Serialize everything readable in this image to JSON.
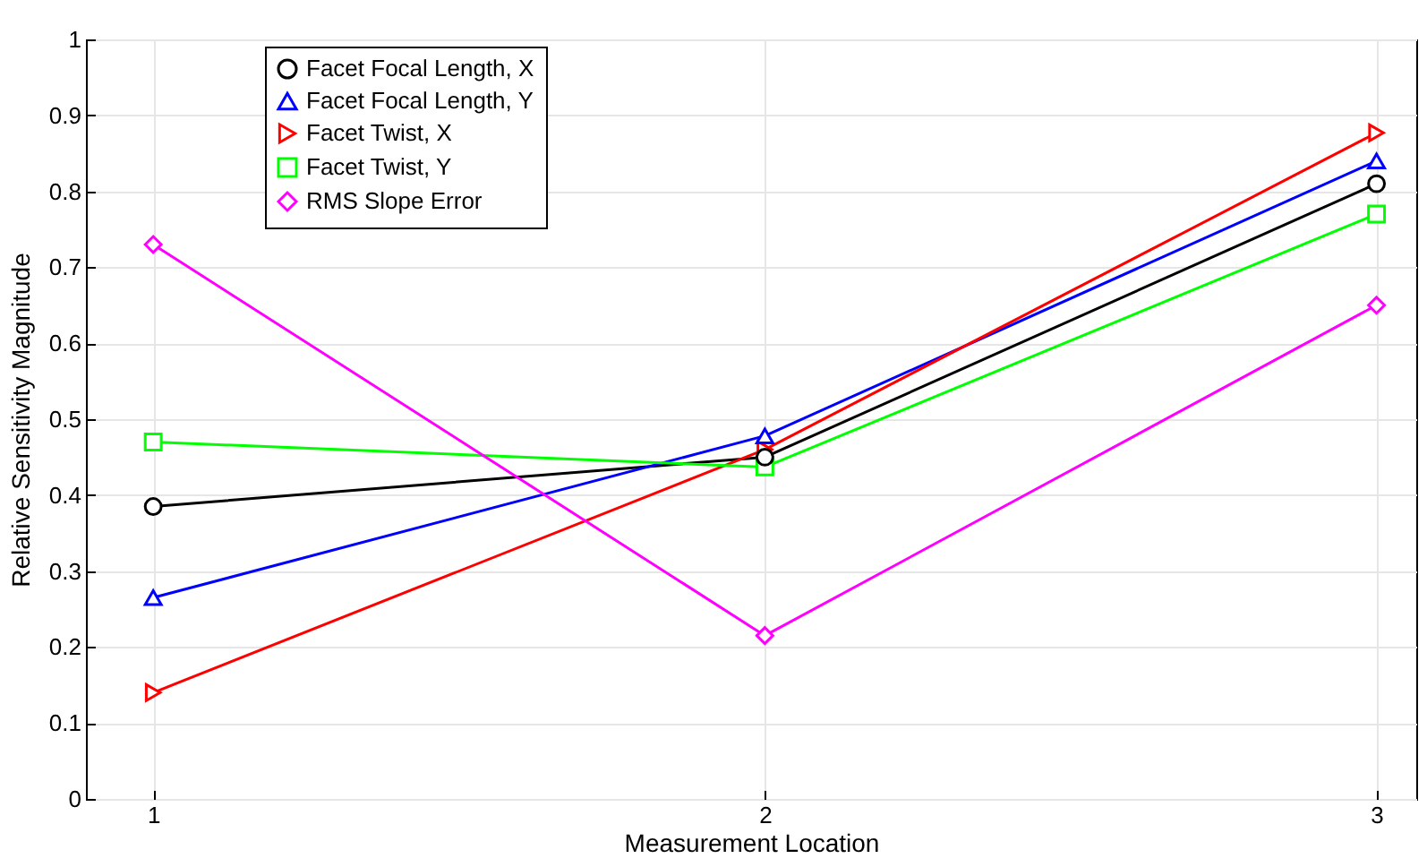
{
  "chart_data": {
    "type": "line",
    "xlabel": "Measurement Location",
    "ylabel": "Relative Sensitivity Magnitude",
    "x": [
      1,
      2,
      3
    ],
    "xlim": [
      0.89,
      3.065
    ],
    "xticks": [
      1,
      2,
      3
    ],
    "ylim": [
      0,
      1
    ],
    "yticks": [
      0,
      0.1,
      0.2,
      0.3,
      0.4,
      0.5,
      0.6,
      0.7,
      0.8,
      0.9,
      1
    ],
    "grid": true,
    "legend": "top left",
    "series": [
      {
        "name": "Facet Focal Length, X",
        "color": "#000000",
        "marker": "circle",
        "values": [
          0.385,
          0.45,
          0.81
        ]
      },
      {
        "name": "Facet Focal Length, Y",
        "color": "#0000ff",
        "marker": "triangle",
        "values": [
          0.265,
          0.478,
          0.84
        ]
      },
      {
        "name": "Facet Twist, X",
        "color": "#ff0000",
        "marker": "triangle-right",
        "values": [
          0.14,
          0.46,
          0.877
        ]
      },
      {
        "name": "Facet Twist, Y",
        "color": "#00ff00",
        "marker": "square",
        "values": [
          0.47,
          0.437,
          0.77
        ]
      },
      {
        "name": "RMS Slope Error",
        "color": "#ff00ff",
        "marker": "diamond",
        "values": [
          0.73,
          0.215,
          0.65
        ]
      }
    ]
  }
}
